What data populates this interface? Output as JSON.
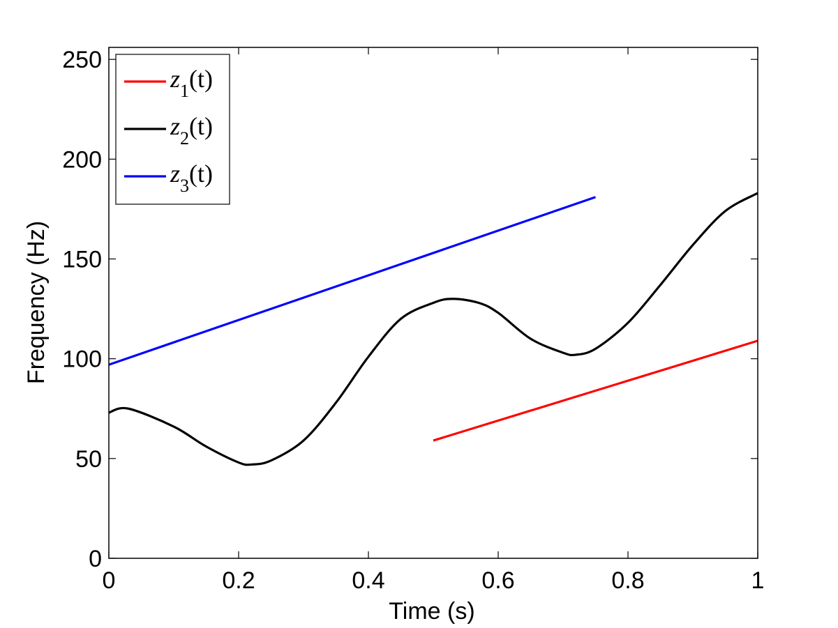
{
  "chart_data": {
    "type": "line",
    "xlabel": "Time (s)",
    "ylabel": "Frequency (Hz)",
    "xlim": [
      0,
      1
    ],
    "ylim": [
      0,
      256
    ],
    "xticks": [
      0,
      0.2,
      0.4,
      0.6,
      0.8,
      1
    ],
    "xtick_labels": [
      "0",
      "0.2",
      "0.4",
      "0.6",
      "0.8",
      "1"
    ],
    "yticks": [
      0,
      50,
      100,
      150,
      200,
      250
    ],
    "ytick_labels": [
      "0",
      "50",
      "100",
      "150",
      "200",
      "250"
    ],
    "grid": false,
    "legend_position": "top-left",
    "series": [
      {
        "legend_base": "z",
        "legend_sub": "1",
        "legend_suffix": "(t)",
        "color": "#ff0000",
        "x": [
          0.5,
          1.0
        ],
        "y": [
          59,
          109
        ]
      },
      {
        "legend_base": "z",
        "legend_sub": "2",
        "legend_suffix": "(t)",
        "color": "#000000",
        "x": [
          0.0,
          0.03,
          0.1,
          0.15,
          0.2,
          0.22,
          0.25,
          0.3,
          0.35,
          0.4,
          0.45,
          0.5,
          0.53,
          0.57,
          0.6,
          0.65,
          0.7,
          0.72,
          0.75,
          0.8,
          0.85,
          0.9,
          0.95,
          1.0
        ],
        "y": [
          73,
          75,
          66,
          56,
          48,
          47,
          49,
          59,
          78,
          101,
          120,
          128,
          130,
          128,
          123,
          110,
          103,
          102,
          105,
          118,
          137,
          157,
          174,
          183
        ]
      },
      {
        "legend_base": "z",
        "legend_sub": "3",
        "legend_suffix": "(t)",
        "color": "#0000ff",
        "x": [
          0.0,
          0.75
        ],
        "y": [
          97,
          181
        ]
      }
    ]
  }
}
